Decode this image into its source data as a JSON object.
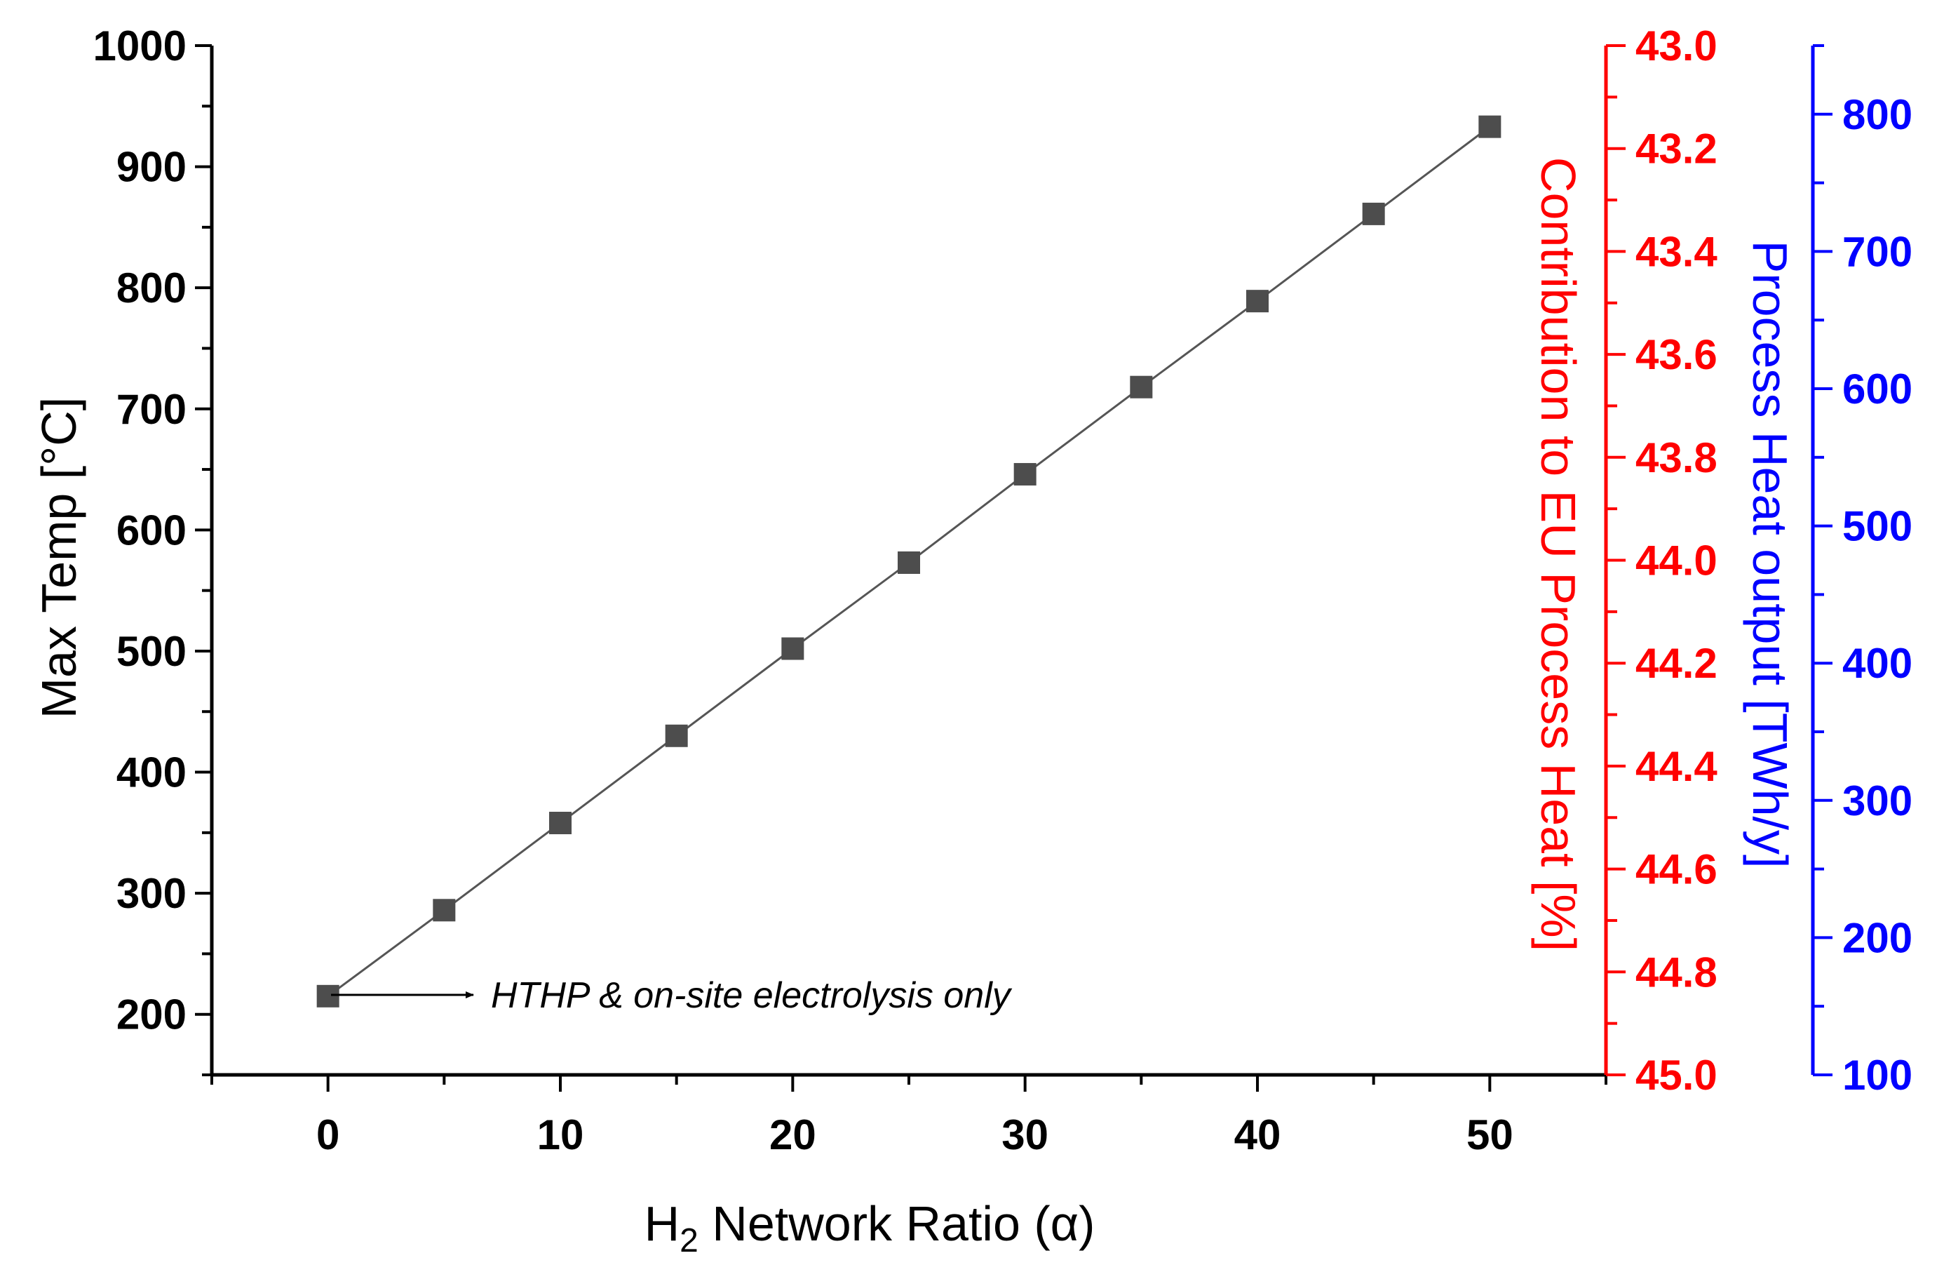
{
  "chart_data": {
    "type": "line",
    "xlabel_prefix": "H",
    "xlabel_subscript": "2",
    "xlabel_suffix": " Network Ratio (α)",
    "ylabel": "Max Temp [°C]",
    "y2label": "Contribution to EU Process Heat [%]",
    "y3label": "Process Heat output [TWh/y]",
    "xlim": [
      -5,
      55
    ],
    "ylim": [
      150,
      1000
    ],
    "y2lim": [
      43.0,
      45.0
    ],
    "y2_reversed": true,
    "y3lim": [
      100,
      850
    ],
    "x_ticks": [
      0,
      10,
      20,
      30,
      40,
      50
    ],
    "y_ticks": [
      200,
      300,
      400,
      500,
      600,
      700,
      800,
      900,
      1000
    ],
    "y2_ticks": [
      "43.0",
      "43.2",
      "43.4",
      "43.6",
      "43.8",
      "44.0",
      "44.2",
      "44.4",
      "44.6",
      "44.8",
      "45.0"
    ],
    "y3_ticks": [
      100,
      200,
      300,
      400,
      500,
      600,
      700,
      800
    ],
    "series": [
      {
        "x": [
          0,
          5,
          10,
          15,
          20,
          25,
          30,
          35,
          40,
          45,
          50
        ],
        "values": [
          215,
          286,
          358,
          430,
          502,
          573,
          646,
          718,
          789,
          861,
          933
        ]
      }
    ],
    "annotation": "HTHP & on-site electrolysis only",
    "colors": {
      "series": "#4d4d4d",
      "line": "#555555",
      "axis_left": "#000000",
      "axis_red": "#ff0000",
      "axis_blue": "#0000ff"
    },
    "grid": false
  }
}
